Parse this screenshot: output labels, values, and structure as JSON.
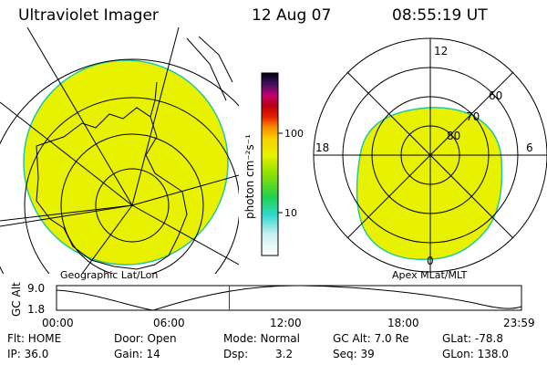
{
  "header": {
    "instrument": "Ultraviolet Imager",
    "date": "12 Aug 07",
    "time": "08:55:19 UT"
  },
  "left_panel": {
    "label": "Geographic Lat/Lon"
  },
  "right_panel": {
    "label": "Apex MLat/MLT",
    "mlt_labels": {
      "top": "12",
      "left": "18",
      "right": "6",
      "bottom": "0"
    },
    "lat_labels": [
      "60",
      "70",
      "80"
    ]
  },
  "colorbar": {
    "unit_label": "photon cm⁻²s⁻¹",
    "ticks": [
      {
        "label": "100",
        "value": 100
      },
      {
        "label": "10",
        "value": 10
      }
    ]
  },
  "altitude_plot": {
    "ylabel": "GC Alt",
    "yticks": [
      "9.0",
      "1.8"
    ],
    "xticks": [
      "00:00",
      "06:00",
      "12:00",
      "18:00",
      "23:59"
    ],
    "current_time_hours": 8.92
  },
  "footer": {
    "flt": "Flt: HOME",
    "door": "Door: Open",
    "mode": "Mode: Normal",
    "gcalt": "GC Alt: 7.0 Re",
    "glat": "GLat: -78.8",
    "ip": "IP: 36.0",
    "gain": "Gain: 14",
    "dsp_label": "Dsp:",
    "dsp_value": "3.2",
    "seq": "Seq: 39",
    "glon": "GLon: 138.0"
  },
  "colors": {
    "aurora_fill": "#e8f200",
    "aurora_edge": "#22c8a0",
    "time_marker": "#cc0000"
  }
}
